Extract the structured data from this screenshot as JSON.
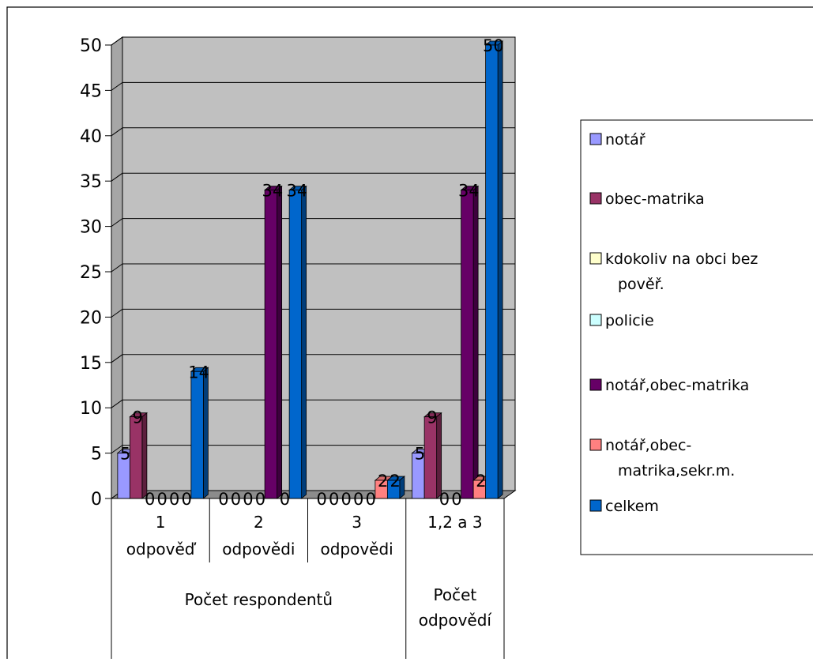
{
  "chart_data": {
    "type": "bar",
    "categories": [
      {
        "line1": "1",
        "line2": "odpověď"
      },
      {
        "line1": "2",
        "line2": "odpovědi"
      },
      {
        "line1": "3",
        "line2": "odpovědi"
      },
      {
        "line1": "1,2 a 3",
        "line2": ""
      }
    ],
    "groups": [
      {
        "line1": "Počet respondentů",
        "line2": ""
      },
      {
        "line1": "Počet",
        "line2": "odpovědí"
      }
    ],
    "series": [
      {
        "name_lines": [
          "notář"
        ],
        "color": "#9999ff",
        "values": [
          5,
          0,
          0,
          5
        ]
      },
      {
        "name_lines": [
          "obec-matrika"
        ],
        "color": "#993366",
        "values": [
          9,
          0,
          0,
          9
        ]
      },
      {
        "name_lines": [
          "kdokoliv na obci bez",
          "pověř."
        ],
        "color": "#ffffcc",
        "values": [
          0,
          0,
          0,
          0
        ]
      },
      {
        "name_lines": [
          "policie"
        ],
        "color": "#ccffff",
        "values": [
          0,
          0,
          0,
          0
        ]
      },
      {
        "name_lines": [
          "notář,obec-matrika"
        ],
        "color": "#660066",
        "values": [
          0,
          34,
          0,
          34
        ]
      },
      {
        "name_lines": [
          "notář,obec-",
          "matrika,sekr.m."
        ],
        "color": "#ff8080",
        "values": [
          0,
          0,
          2,
          2
        ]
      },
      {
        "name_lines": [
          "celkem"
        ],
        "color": "#0066cc",
        "values": [
          14,
          34,
          2,
          50
        ]
      }
    ],
    "y_ticks": [
      "0",
      "5",
      "10",
      "15",
      "20",
      "25",
      "30",
      "35",
      "40",
      "45",
      "50"
    ],
    "ylim": [
      0,
      50
    ],
    "grid": true,
    "legend_position": "right",
    "plot_background": "#c0c0c0"
  }
}
